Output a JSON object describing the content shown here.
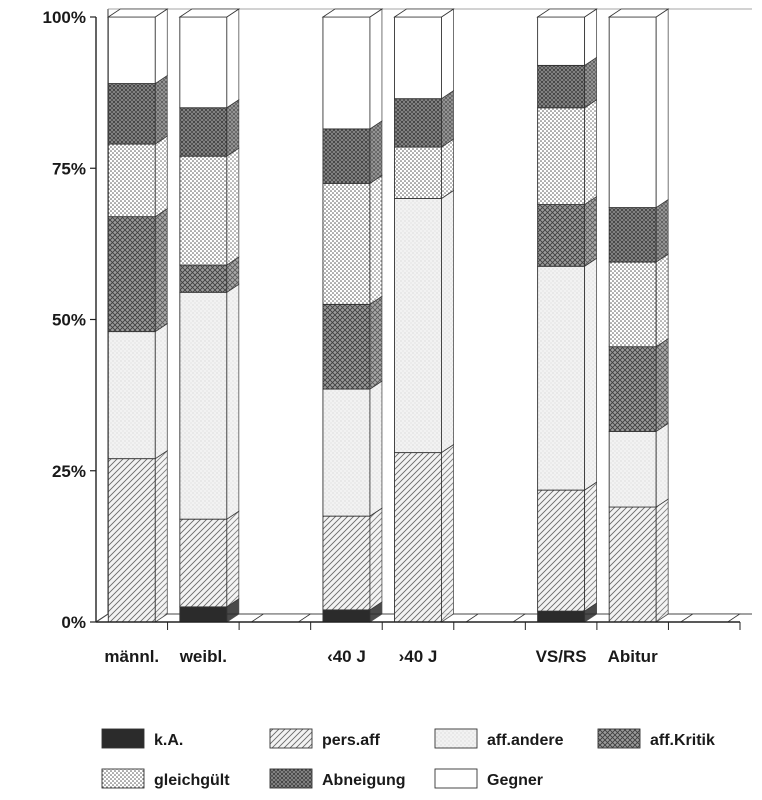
{
  "chart_data": {
    "type": "bar",
    "stacked": true,
    "percent": true,
    "ylim": [
      0,
      100
    ],
    "yticks": [
      "0%",
      "25%",
      "50%",
      "75%",
      "100%"
    ],
    "categories": [
      "männl.",
      "weibl.",
      "",
      "‹40 J",
      "›40 J",
      "",
      "VS/RS",
      "Abitur",
      ""
    ],
    "series": [
      {
        "name": "k.A.",
        "pattern": "solid",
        "values": [
          0,
          2.5,
          0,
          2,
          0,
          0,
          1.8,
          0,
          0
        ]
      },
      {
        "name": "pers.aff",
        "pattern": "hatch",
        "values": [
          27,
          14.5,
          0,
          15.5,
          28,
          0,
          20,
          19,
          0
        ]
      },
      {
        "name": "aff.andere",
        "pattern": "light",
        "values": [
          21,
          37.5,
          0,
          21,
          42,
          0,
          37,
          12.5,
          0
        ]
      },
      {
        "name": "aff.Kritik",
        "pattern": "crosshatch",
        "values": [
          19,
          4.5,
          0,
          14,
          0,
          0,
          10.2,
          14,
          0
        ]
      },
      {
        "name": "gleichgült",
        "pattern": "dots",
        "values": [
          12,
          18,
          0,
          20,
          8.5,
          0,
          16,
          14,
          0
        ]
      },
      {
        "name": "Abneigung",
        "pattern": "dense",
        "values": [
          10,
          8,
          0,
          9,
          8,
          0,
          7,
          9,
          0
        ]
      },
      {
        "name": "Gegner",
        "pattern": "white",
        "values": [
          11,
          15,
          0,
          18.5,
          13.5,
          0,
          8,
          31.5,
          0
        ]
      }
    ],
    "legend": [
      "k.A.",
      "pers.aff",
      "aff.andere",
      "aff.Kritik",
      "gleichgült",
      "Abneigung",
      "Gegner"
    ],
    "legend_position": "bottom",
    "grid": false,
    "style": "3d-stacked"
  }
}
